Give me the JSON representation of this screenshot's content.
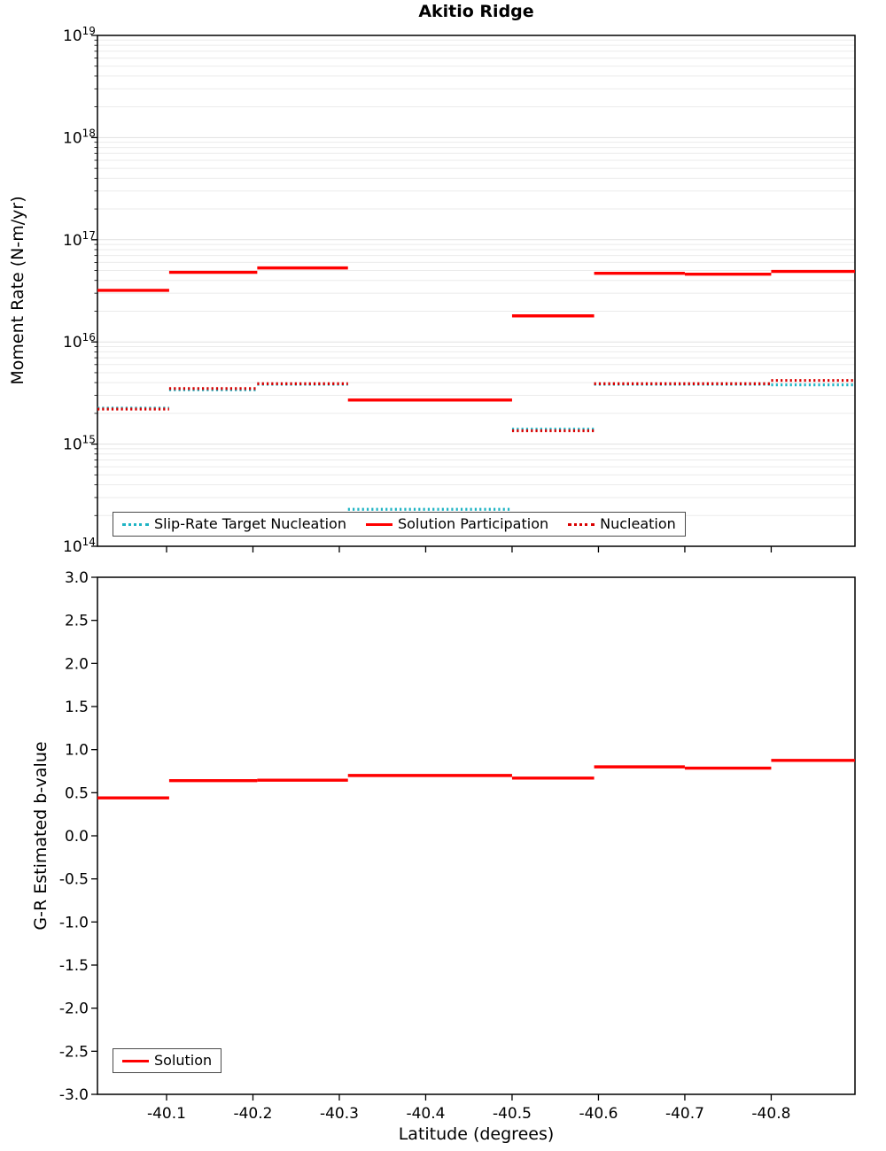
{
  "chart_data": [
    {
      "type": "line",
      "title": "Akitio Ridge",
      "ylabel": "Moment Rate (N-m/yr)",
      "yscale": "log",
      "ylim_exp": [
        14,
        19
      ],
      "ytick_exponents": [
        14,
        15,
        16,
        17,
        18,
        19
      ],
      "xlim": [
        -40.02,
        -40.897
      ],
      "xticks": [
        -40.1,
        -40.2,
        -40.3,
        -40.4,
        -40.5,
        -40.6,
        -40.7,
        -40.8
      ],
      "grid": "horizontal-log-minor",
      "legend_position": "lower-left",
      "series": [
        {
          "name": "Slip-Rate Target Nucleation",
          "color": "#1fb4c4",
          "style": "dotted",
          "segments": [
            {
              "x1": -40.02,
              "x2": -40.103,
              "y": 2250000000000000.0
            },
            {
              "x1": -40.103,
              "x2": -40.205,
              "y": 3400000000000000.0
            },
            {
              "x1": -40.205,
              "x2": -40.31,
              "y": 3850000000000000.0
            },
            {
              "x1": -40.31,
              "x2": -40.5,
              "y": 230000000000000.0
            },
            {
              "x1": -40.5,
              "x2": -40.595,
              "y": 1400000000000000.0
            },
            {
              "x1": -40.595,
              "x2": -40.8,
              "y": 3850000000000000.0
            },
            {
              "x1": -40.8,
              "x2": -40.897,
              "y": 3800000000000000.0
            }
          ]
        },
        {
          "name": "Solution Participation",
          "color": "#ff0000",
          "style": "solid",
          "segments": [
            {
              "x1": -40.02,
              "x2": -40.103,
              "y": 3.2e+16
            },
            {
              "x1": -40.103,
              "x2": -40.205,
              "y": 4.8e+16
            },
            {
              "x1": -40.205,
              "x2": -40.31,
              "y": 5.3e+16
            },
            {
              "x1": -40.31,
              "x2": -40.5,
              "y": 2700000000000000.0
            },
            {
              "x1": -40.5,
              "x2": -40.595,
              "y": 1.8e+16
            },
            {
              "x1": -40.595,
              "x2": -40.7,
              "y": 4.7e+16
            },
            {
              "x1": -40.7,
              "x2": -40.8,
              "y": 4.6e+16
            },
            {
              "x1": -40.8,
              "x2": -40.897,
              "y": 4.9e+16
            }
          ]
        },
        {
          "name": "Nucleation",
          "color": "#d90000",
          "style": "dotted",
          "segments": [
            {
              "x1": -40.02,
              "x2": -40.103,
              "y": 2200000000000000.0
            },
            {
              "x1": -40.103,
              "x2": -40.205,
              "y": 3500000000000000.0
            },
            {
              "x1": -40.205,
              "x2": -40.31,
              "y": 3900000000000000.0
            },
            {
              "x1": -40.31,
              "x2": -40.5,
              "y": 210000000000000.0
            },
            {
              "x1": -40.5,
              "x2": -40.595,
              "y": 1350000000000000.0
            },
            {
              "x1": -40.595,
              "x2": -40.8,
              "y": 3900000000000000.0
            },
            {
              "x1": -40.8,
              "x2": -40.897,
              "y": 4200000000000000.0
            }
          ]
        }
      ]
    },
    {
      "type": "line",
      "ylabel": "G-R Estimated b-value",
      "xlabel": "Latitude (degrees)",
      "ylim": [
        -3.0,
        3.0
      ],
      "yticks": [
        -3.0,
        -2.5,
        -2.0,
        -1.5,
        -1.0,
        -0.5,
        0.0,
        0.5,
        1.0,
        1.5,
        2.0,
        2.5,
        3.0
      ],
      "xlim": [
        -40.02,
        -40.897
      ],
      "xticks": [
        -40.1,
        -40.2,
        -40.3,
        -40.4,
        -40.5,
        -40.6,
        -40.7,
        -40.8
      ],
      "grid": "none",
      "legend_position": "lower-left",
      "series": [
        {
          "name": "Solution",
          "color": "#ff0000",
          "style": "solid",
          "segments": [
            {
              "x1": -40.02,
              "x2": -40.103,
              "y": 0.44
            },
            {
              "x1": -40.103,
              "x2": -40.205,
              "y": 0.64
            },
            {
              "x1": -40.205,
              "x2": -40.31,
              "y": 0.645
            },
            {
              "x1": -40.31,
              "x2": -40.5,
              "y": 0.7
            },
            {
              "x1": -40.5,
              "x2": -40.595,
              "y": 0.67
            },
            {
              "x1": -40.595,
              "x2": -40.7,
              "y": 0.8
            },
            {
              "x1": -40.7,
              "x2": -40.8,
              "y": 0.785
            },
            {
              "x1": -40.8,
              "x2": -40.897,
              "y": 0.875
            }
          ]
        }
      ]
    }
  ]
}
